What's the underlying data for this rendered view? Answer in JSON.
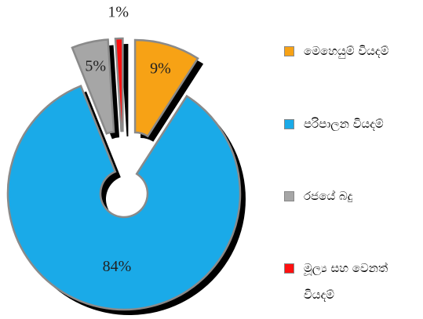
{
  "chart_data": {
    "type": "donut",
    "categories": [
      "මෙහෙයුම් වියදම්",
      "පරිපාලන වියදම්",
      "රජයේ බදු",
      "මූල්‍ය සහ වෙනත් වියදම්"
    ],
    "values": [
      9,
      84,
      5,
      1
    ],
    "value_labels": [
      "9%",
      "84%",
      "5%",
      "1%"
    ],
    "colors": [
      "#f7a215",
      "#1aaae8",
      "#a6a6a6",
      "#ff1010"
    ],
    "legend": "right"
  }
}
